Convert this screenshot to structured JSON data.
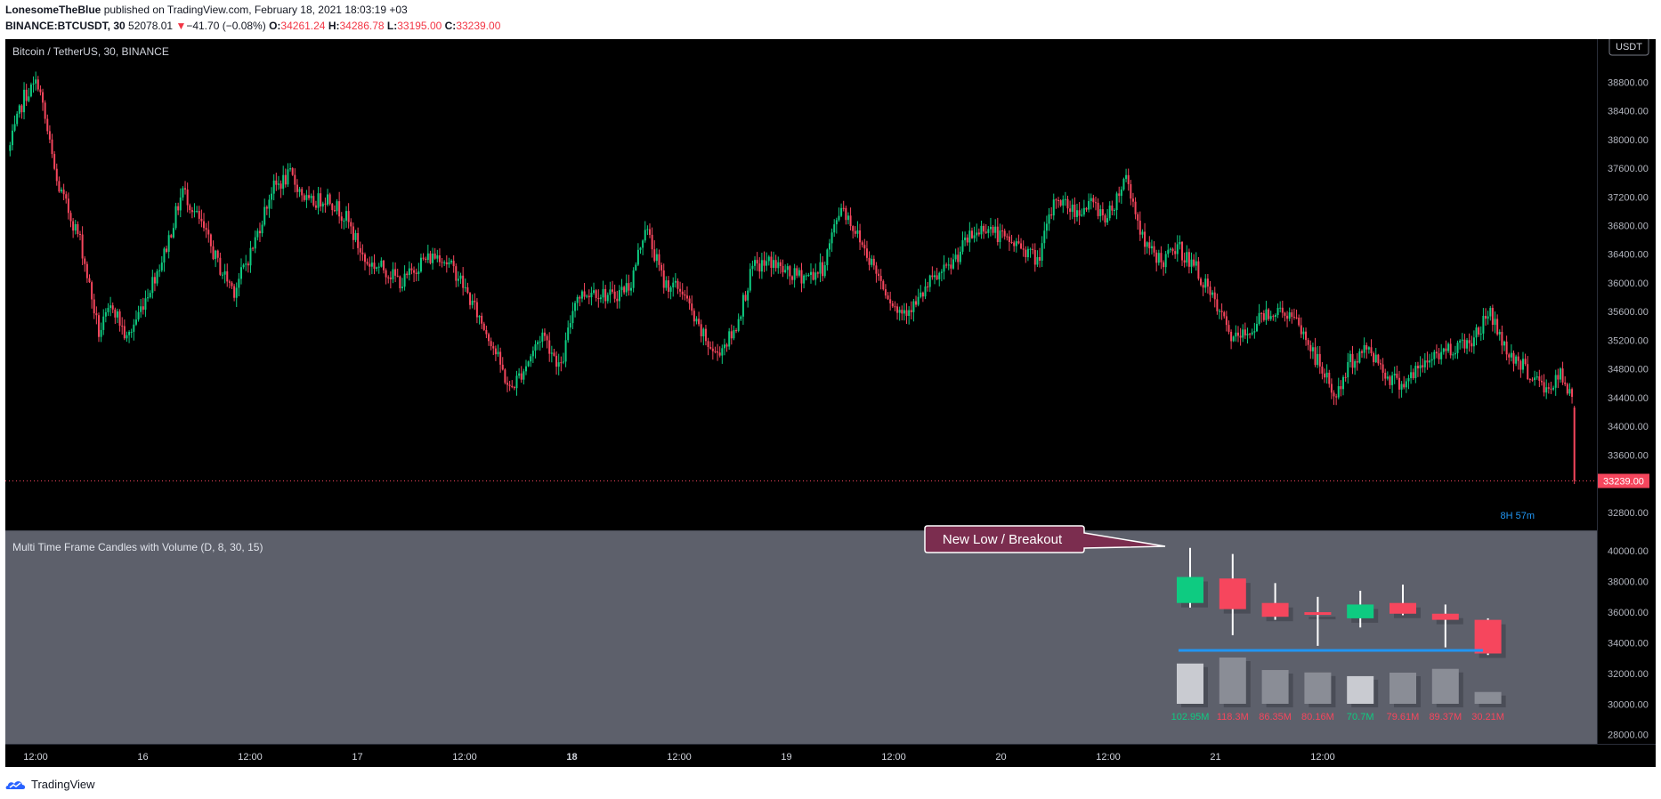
{
  "header": {
    "publisher": "LonesomeTheBlue",
    "published_text": "published on TradingView.com, February 18, 2021 18:03:19 +03",
    "symbol": "BINANCE:BTCUSDT, 30",
    "last": "52078.01",
    "change_arrow": "▼",
    "change": "−41.70 (−0.08%)",
    "o_label": "O:",
    "o_value": "34261.24",
    "h_label": "H:",
    "h_value": "34286.78",
    "l_label": "L:",
    "l_value": "33195.00",
    "c_label": "C:",
    "c_value": "33239.00"
  },
  "footer": {
    "brand": "TradingView"
  },
  "colors": {
    "up": "#0ecb81",
    "down": "#f6465d",
    "main_bg": "#000000",
    "pane_bg": "#5d606b",
    "blue_line": "#2962ff",
    "callout_bg": "#7b2d4f"
  },
  "chart_data": [
    {
      "type": "candlestick",
      "title": "Bitcoin / TetherUS, 30, BINANCE",
      "currency_label": "USDT",
      "last_price_label": "33239.00",
      "y_ticks": [
        "38800.00",
        "38400.00",
        "38000.00",
        "37600.00",
        "37200.00",
        "36800.00",
        "36400.00",
        "36000.00",
        "35600.00",
        "35200.00",
        "34800.00",
        "34400.00",
        "34000.00",
        "33600.00",
        "32800.00"
      ],
      "ylim": [
        32600,
        39300
      ],
      "x_ticks": [
        "12:00",
        "16",
        "12:00",
        "17",
        "12:00",
        "18",
        "12:00",
        "19",
        "12:00",
        "20",
        "12:00",
        "21",
        "12:00"
      ],
      "x_ticks_bold": [
        "18"
      ],
      "close_path": [
        [
          0,
          37900
        ],
        [
          6,
          38600
        ],
        [
          12,
          38800
        ],
        [
          20,
          37400
        ],
        [
          30,
          36600
        ],
        [
          38,
          35300
        ],
        [
          44,
          35700
        ],
        [
          50,
          35200
        ],
        [
          58,
          35800
        ],
        [
          66,
          36400
        ],
        [
          74,
          37300
        ],
        [
          82,
          36800
        ],
        [
          90,
          36200
        ],
        [
          96,
          35900
        ],
        [
          104,
          36500
        ],
        [
          112,
          37300
        ],
        [
          120,
          37500
        ],
        [
          128,
          37100
        ],
        [
          136,
          37200
        ],
        [
          144,
          36900
        ],
        [
          152,
          36300
        ],
        [
          160,
          36200
        ],
        [
          168,
          36000
        ],
        [
          176,
          36300
        ],
        [
          184,
          36400
        ],
        [
          192,
          36100
        ],
        [
          198,
          35700
        ],
        [
          206,
          35200
        ],
        [
          214,
          34500
        ],
        [
          220,
          34800
        ],
        [
          228,
          35300
        ],
        [
          236,
          34800
        ],
        [
          242,
          35800
        ],
        [
          250,
          35900
        ],
        [
          258,
          35800
        ],
        [
          266,
          36000
        ],
        [
          272,
          36800
        ],
        [
          280,
          36000
        ],
        [
          288,
          35900
        ],
        [
          294,
          35400
        ],
        [
          302,
          35000
        ],
        [
          310,
          35300
        ],
        [
          318,
          36200
        ],
        [
          326,
          36300
        ],
        [
          334,
          36100
        ],
        [
          342,
          36100
        ],
        [
          348,
          36200
        ],
        [
          356,
          37100
        ],
        [
          364,
          36600
        ],
        [
          372,
          36100
        ],
        [
          380,
          35600
        ],
        [
          388,
          35700
        ],
        [
          394,
          36000
        ],
        [
          402,
          36200
        ],
        [
          410,
          36600
        ],
        [
          418,
          36800
        ],
        [
          426,
          36600
        ],
        [
          434,
          36500
        ],
        [
          440,
          36300
        ],
        [
          448,
          37200
        ],
        [
          456,
          37000
        ],
        [
          464,
          37100
        ],
        [
          470,
          36900
        ],
        [
          478,
          37500
        ],
        [
          486,
          36500
        ],
        [
          494,
          36300
        ],
        [
          500,
          36500
        ],
        [
          508,
          36200
        ],
        [
          516,
          35700
        ],
        [
          524,
          35200
        ],
        [
          530,
          35300
        ],
        [
          538,
          35600
        ],
        [
          546,
          35600
        ],
        [
          552,
          35400
        ],
        [
          560,
          34900
        ],
        [
          568,
          34400
        ],
        [
          574,
          34900
        ],
        [
          582,
          35100
        ],
        [
          590,
          34700
        ],
        [
          596,
          34600
        ],
        [
          604,
          34800
        ],
        [
          610,
          35000
        ],
        [
          618,
          35100
        ],
        [
          626,
          35200
        ],
        [
          634,
          35600
        ],
        [
          640,
          35100
        ],
        [
          646,
          34900
        ],
        [
          652,
          34700
        ],
        [
          658,
          34500
        ],
        [
          664,
          34700
        ],
        [
          670,
          34300
        ]
      ],
      "last_candle": {
        "open": 34261.24,
        "high": 34286.78,
        "low": 33195.0,
        "close": 33239.0
      }
    },
    {
      "type": "candlestick",
      "title": "Multi Time Frame Candles with Volume (D, 8, 30, 15)",
      "y_ticks": [
        "40000.00",
        "38000.00",
        "36000.00",
        "34000.00",
        "32000.00",
        "30000.00",
        "28000.00"
      ],
      "ylim": [
        27400,
        41000
      ],
      "candles": [
        {
          "open": 36600,
          "high": 40200,
          "low": 36300,
          "close": 38300
        },
        {
          "open": 38200,
          "high": 39800,
          "low": 34500,
          "close": 36200
        },
        {
          "open": 36600,
          "high": 37900,
          "low": 35500,
          "close": 35700
        },
        {
          "open": 36000,
          "high": 37000,
          "low": 33800,
          "close": 35900
        },
        {
          "open": 35600,
          "high": 37400,
          "low": 35000,
          "close": 36500
        },
        {
          "open": 36600,
          "high": 37800,
          "low": 35800,
          "close": 35900
        },
        {
          "open": 35900,
          "high": 36500,
          "low": 33700,
          "close": 35500
        },
        {
          "open": 35500,
          "high": 35600,
          "low": 33200,
          "close": 33300
        }
      ],
      "volumes": [
        102.95,
        118.3,
        86.35,
        80.16,
        70.7,
        79.61,
        89.37,
        30.21
      ],
      "volume_labels": [
        "102.95M",
        "118.3M",
        "86.35M",
        "80.16M",
        "70.7M",
        "79.61M",
        "89.37M",
        "30.21M"
      ],
      "volume_label_up": [
        true,
        false,
        false,
        false,
        true,
        false,
        false,
        false
      ],
      "timer_label": "8H 57m",
      "breakout_level": 33500,
      "annotation": "New Low / Breakout"
    }
  ]
}
